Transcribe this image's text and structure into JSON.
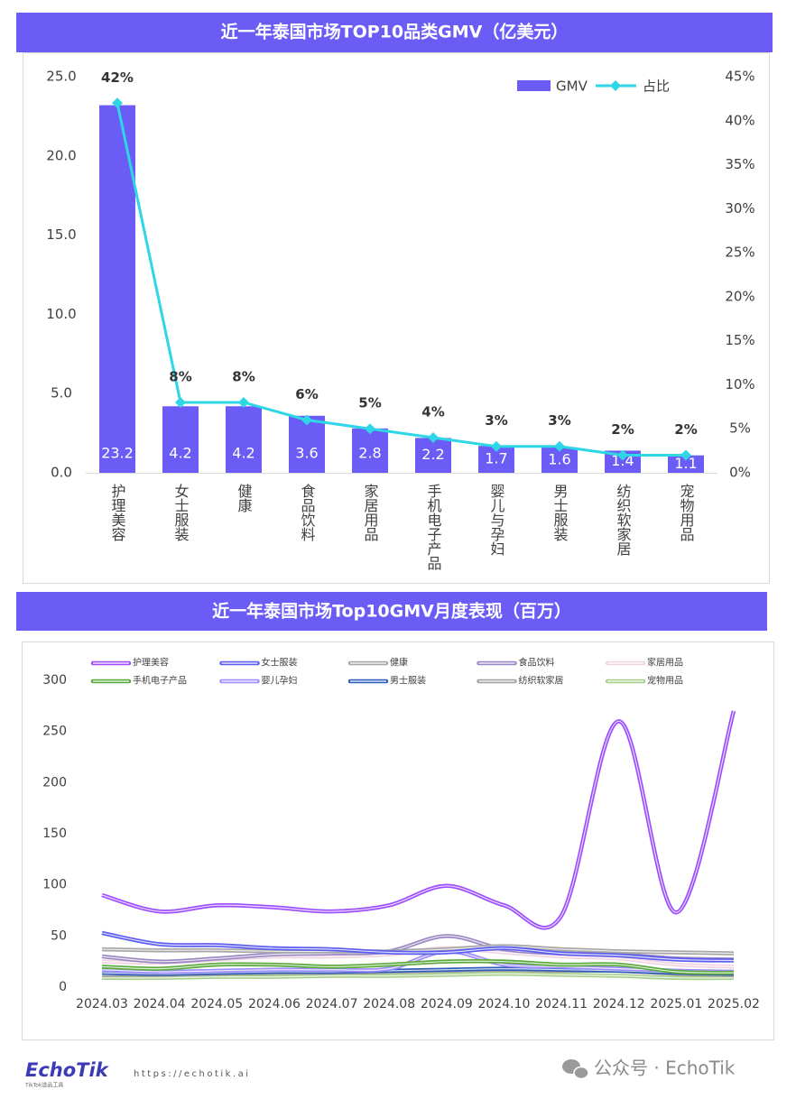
{
  "chart_data": [
    {
      "type": "combo",
      "title": "近一年泰国市场TOP10品类GMV（亿美元）",
      "categories": [
        "护理美容",
        "女士服装",
        "健康",
        "食品饮料",
        "家居用品",
        "手机电子产品",
        "婴儿与孕妇",
        "男士服装",
        "纺织软家居",
        "宠物用品"
      ],
      "series": [
        {
          "name": "GMV",
          "type": "bar",
          "color": "#6c5cf6",
          "values": [
            23.2,
            4.2,
            4.2,
            3.6,
            2.8,
            2.2,
            1.7,
            1.6,
            1.4,
            1.1
          ]
        },
        {
          "name": "占比",
          "type": "line",
          "axis": "y2",
          "color": "#2fd6e6",
          "values": [
            42,
            8,
            8,
            6,
            5,
            4,
            3,
            3,
            2,
            2
          ],
          "value_labels": [
            "42%",
            "8%",
            "8%",
            "6%",
            "5%",
            "4%",
            "3%",
            "3%",
            "2%",
            "2%"
          ]
        }
      ],
      "ylim": [
        0,
        25
      ],
      "yticks": [
        {
          "value": 0,
          "label": "0.0"
        },
        {
          "value": 5,
          "label": "5.0"
        },
        {
          "value": 10,
          "label": "10.0"
        },
        {
          "value": 15,
          "label": "15.0"
        },
        {
          "value": 20,
          "label": "20.0"
        },
        {
          "value": 25,
          "label": "25.0"
        }
      ],
      "y2lim": [
        0,
        45
      ],
      "y2ticks": [
        {
          "value": 0,
          "label": "0%"
        },
        {
          "value": 5,
          "label": "5%"
        },
        {
          "value": 10,
          "label": "10%"
        },
        {
          "value": 15,
          "label": "15%"
        },
        {
          "value": 20,
          "label": "20%"
        },
        {
          "value": 25,
          "label": "25%"
        },
        {
          "value": 30,
          "label": "30%"
        },
        {
          "value": 35,
          "label": "35%"
        },
        {
          "value": 40,
          "label": "40%"
        },
        {
          "value": 45,
          "label": "45%"
        }
      ],
      "legend": "top-right",
      "grid": false
    },
    {
      "type": "line",
      "title": "近一年泰国市场Top10GMV月度表现（百万）",
      "categories": [
        "2024.03",
        "2024.04",
        "2024.05",
        "2024.06",
        "2024.07",
        "2024.08",
        "2024.09",
        "2024.10",
        "2024.11",
        "2024.12",
        "2025.01",
        "2025.02"
      ],
      "series": [
        {
          "name": "护理美容",
          "color": "#9b4dff",
          "values": [
            90,
            74,
            80,
            78,
            74,
            80,
            99,
            80,
            70,
            260,
            73,
            270
          ]
        },
        {
          "name": "女士服装",
          "color": "#5b5bf0",
          "values": [
            53,
            42,
            41,
            38,
            37,
            34,
            34,
            38,
            33,
            31,
            27,
            26
          ]
        },
        {
          "name": "健康",
          "color": "#a6a6a6",
          "values": [
            37,
            36,
            36,
            35,
            35,
            35,
            37,
            40,
            37,
            35,
            34,
            33
          ]
        },
        {
          "name": "食品饮料",
          "color": "#9a88c4",
          "values": [
            30,
            25,
            28,
            32,
            33,
            35,
            50,
            37,
            33,
            32,
            28,
            27
          ]
        },
        {
          "name": "家居用品",
          "color": "#f0d4e2",
          "values": [
            25,
            24,
            27,
            30,
            30,
            32,
            38,
            34,
            30,
            28,
            22,
            20
          ]
        },
        {
          "name": "手机电子产品",
          "color": "#5aaa3c",
          "values": [
            20,
            18,
            22,
            22,
            20,
            22,
            25,
            25,
            22,
            22,
            15,
            14
          ]
        },
        {
          "name": "婴儿孕妇",
          "color": "#9d8cff",
          "values": [
            17,
            15,
            16,
            17,
            17,
            18,
            35,
            22,
            20,
            18,
            16,
            15
          ]
        },
        {
          "name": "男士服装",
          "color": "#2f5cb8",
          "values": [
            14,
            13,
            14,
            15,
            15,
            16,
            17,
            18,
            17,
            16,
            14,
            13
          ]
        },
        {
          "name": "纺织软家居",
          "color": "#a0a0a0",
          "values": [
            12,
            12,
            13,
            14,
            14,
            15,
            16,
            17,
            16,
            16,
            13,
            12
          ]
        },
        {
          "name": "宠物用品",
          "color": "#a8d08d",
          "values": [
            9,
            9,
            10,
            10,
            11,
            11,
            12,
            13,
            12,
            11,
            9,
            9
          ]
        }
      ],
      "ylim": [
        0,
        300
      ],
      "yticks": [
        0,
        50,
        100,
        150,
        200,
        250,
        300
      ],
      "legend": "top",
      "grid": false
    }
  ],
  "footer": {
    "brand": "EchoTik",
    "brand_tagline": "TikTok选品工具",
    "url": "https://echotik.ai",
    "watermark": "公众号 · EchoTik"
  }
}
